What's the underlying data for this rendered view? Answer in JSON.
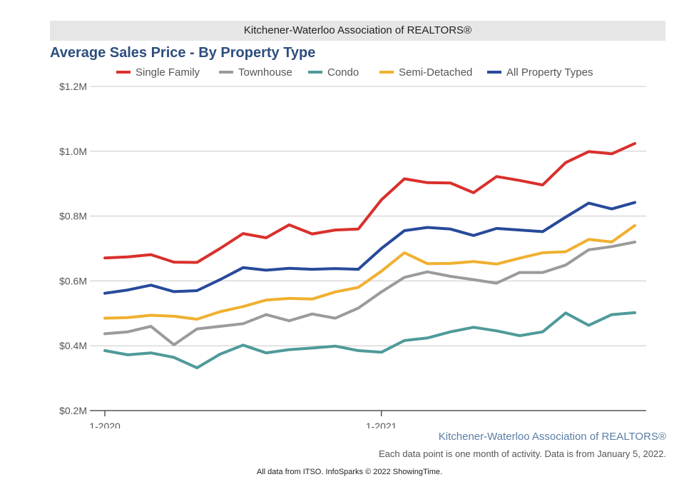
{
  "header": {
    "org": "Kitchener-Waterloo Association of REALTORS®"
  },
  "footer": {
    "brand": "Kitchener-Waterloo Association of REALTORS®",
    "note": "Each data point is one month of activity. Data is from January 5, 2022.",
    "credit": "All data from ITSO. InfoSparks © 2022 ShowingTime."
  },
  "chart_data": {
    "type": "line",
    "title": "Average Sales Price - By Property Type",
    "xlabel": "",
    "ylabel": "",
    "x": [
      "2020-01",
      "2020-02",
      "2020-03",
      "2020-04",
      "2020-05",
      "2020-06",
      "2020-07",
      "2020-08",
      "2020-09",
      "2020-10",
      "2020-11",
      "2020-12",
      "2021-01",
      "2021-02",
      "2021-03",
      "2021-04",
      "2021-05",
      "2021-06",
      "2021-07",
      "2021-08",
      "2021-09",
      "2021-10",
      "2021-11",
      "2021-12"
    ],
    "x_ticks": [
      {
        "x": "2020-01",
        "label": "1-2020"
      },
      {
        "x": "2021-01",
        "label": "1-2021"
      }
    ],
    "ylim": [
      200000,
      1200000
    ],
    "y_ticks": [
      {
        "value": 200000,
        "label": "$0.2M"
      },
      {
        "value": 400000,
        "label": "$0.4M"
      },
      {
        "value": 600000,
        "label": "$0.6M"
      },
      {
        "value": 800000,
        "label": "$0.8M"
      },
      {
        "value": 1000000,
        "label": "$1.0M"
      },
      {
        "value": 1200000,
        "label": "$1.2M"
      }
    ],
    "grid": true,
    "legend_position": "top",
    "series": [
      {
        "name": "Single Family",
        "color": "#d9302c",
        "values": [
          671000,
          674000,
          681000,
          658000,
          657000,
          700000,
          746000,
          733000,
          773000,
          745000,
          757000,
          760000,
          850000,
          915000,
          903000,
          902000,
          872000,
          922000,
          910000,
          896000,
          965000,
          999000,
          992000,
          1024000
        ]
      },
      {
        "name": "Townhouse",
        "color": "#9b9b9b",
        "values": [
          437000,
          443000,
          460000,
          403000,
          452000,
          460000,
          468000,
          496000,
          477000,
          498000,
          485000,
          516000,
          566000,
          611000,
          628000,
          614000,
          604000,
          593000,
          626000,
          626000,
          649000,
          696000,
          706000,
          720000
        ]
      },
      {
        "name": "Condo",
        "color": "#4f9a9a",
        "values": [
          385000,
          372000,
          378000,
          364000,
          332000,
          374000,
          402000,
          378000,
          388000,
          393000,
          399000,
          385000,
          380000,
          416000,
          424000,
          443000,
          457000,
          446000,
          431000,
          443000,
          501000,
          463000,
          496000,
          502000
        ]
      },
      {
        "name": "Semi-Detached",
        "color": "#f0b030",
        "values": [
          485000,
          487000,
          494000,
          491000,
          482000,
          505000,
          521000,
          541000,
          546000,
          544000,
          566000,
          580000,
          630000,
          687000,
          653000,
          654000,
          660000,
          652000,
          670000,
          687000,
          690000,
          728000,
          720000,
          771000
        ]
      },
      {
        "name": "All Property Types",
        "color": "#274a9a",
        "values": [
          562000,
          572000,
          587000,
          567000,
          570000,
          604000,
          641000,
          633000,
          639000,
          636000,
          638000,
          636000,
          700000,
          755000,
          765000,
          760000,
          740000,
          762000,
          757000,
          752000,
          797000,
          840000,
          822000,
          842000
        ]
      }
    ]
  }
}
